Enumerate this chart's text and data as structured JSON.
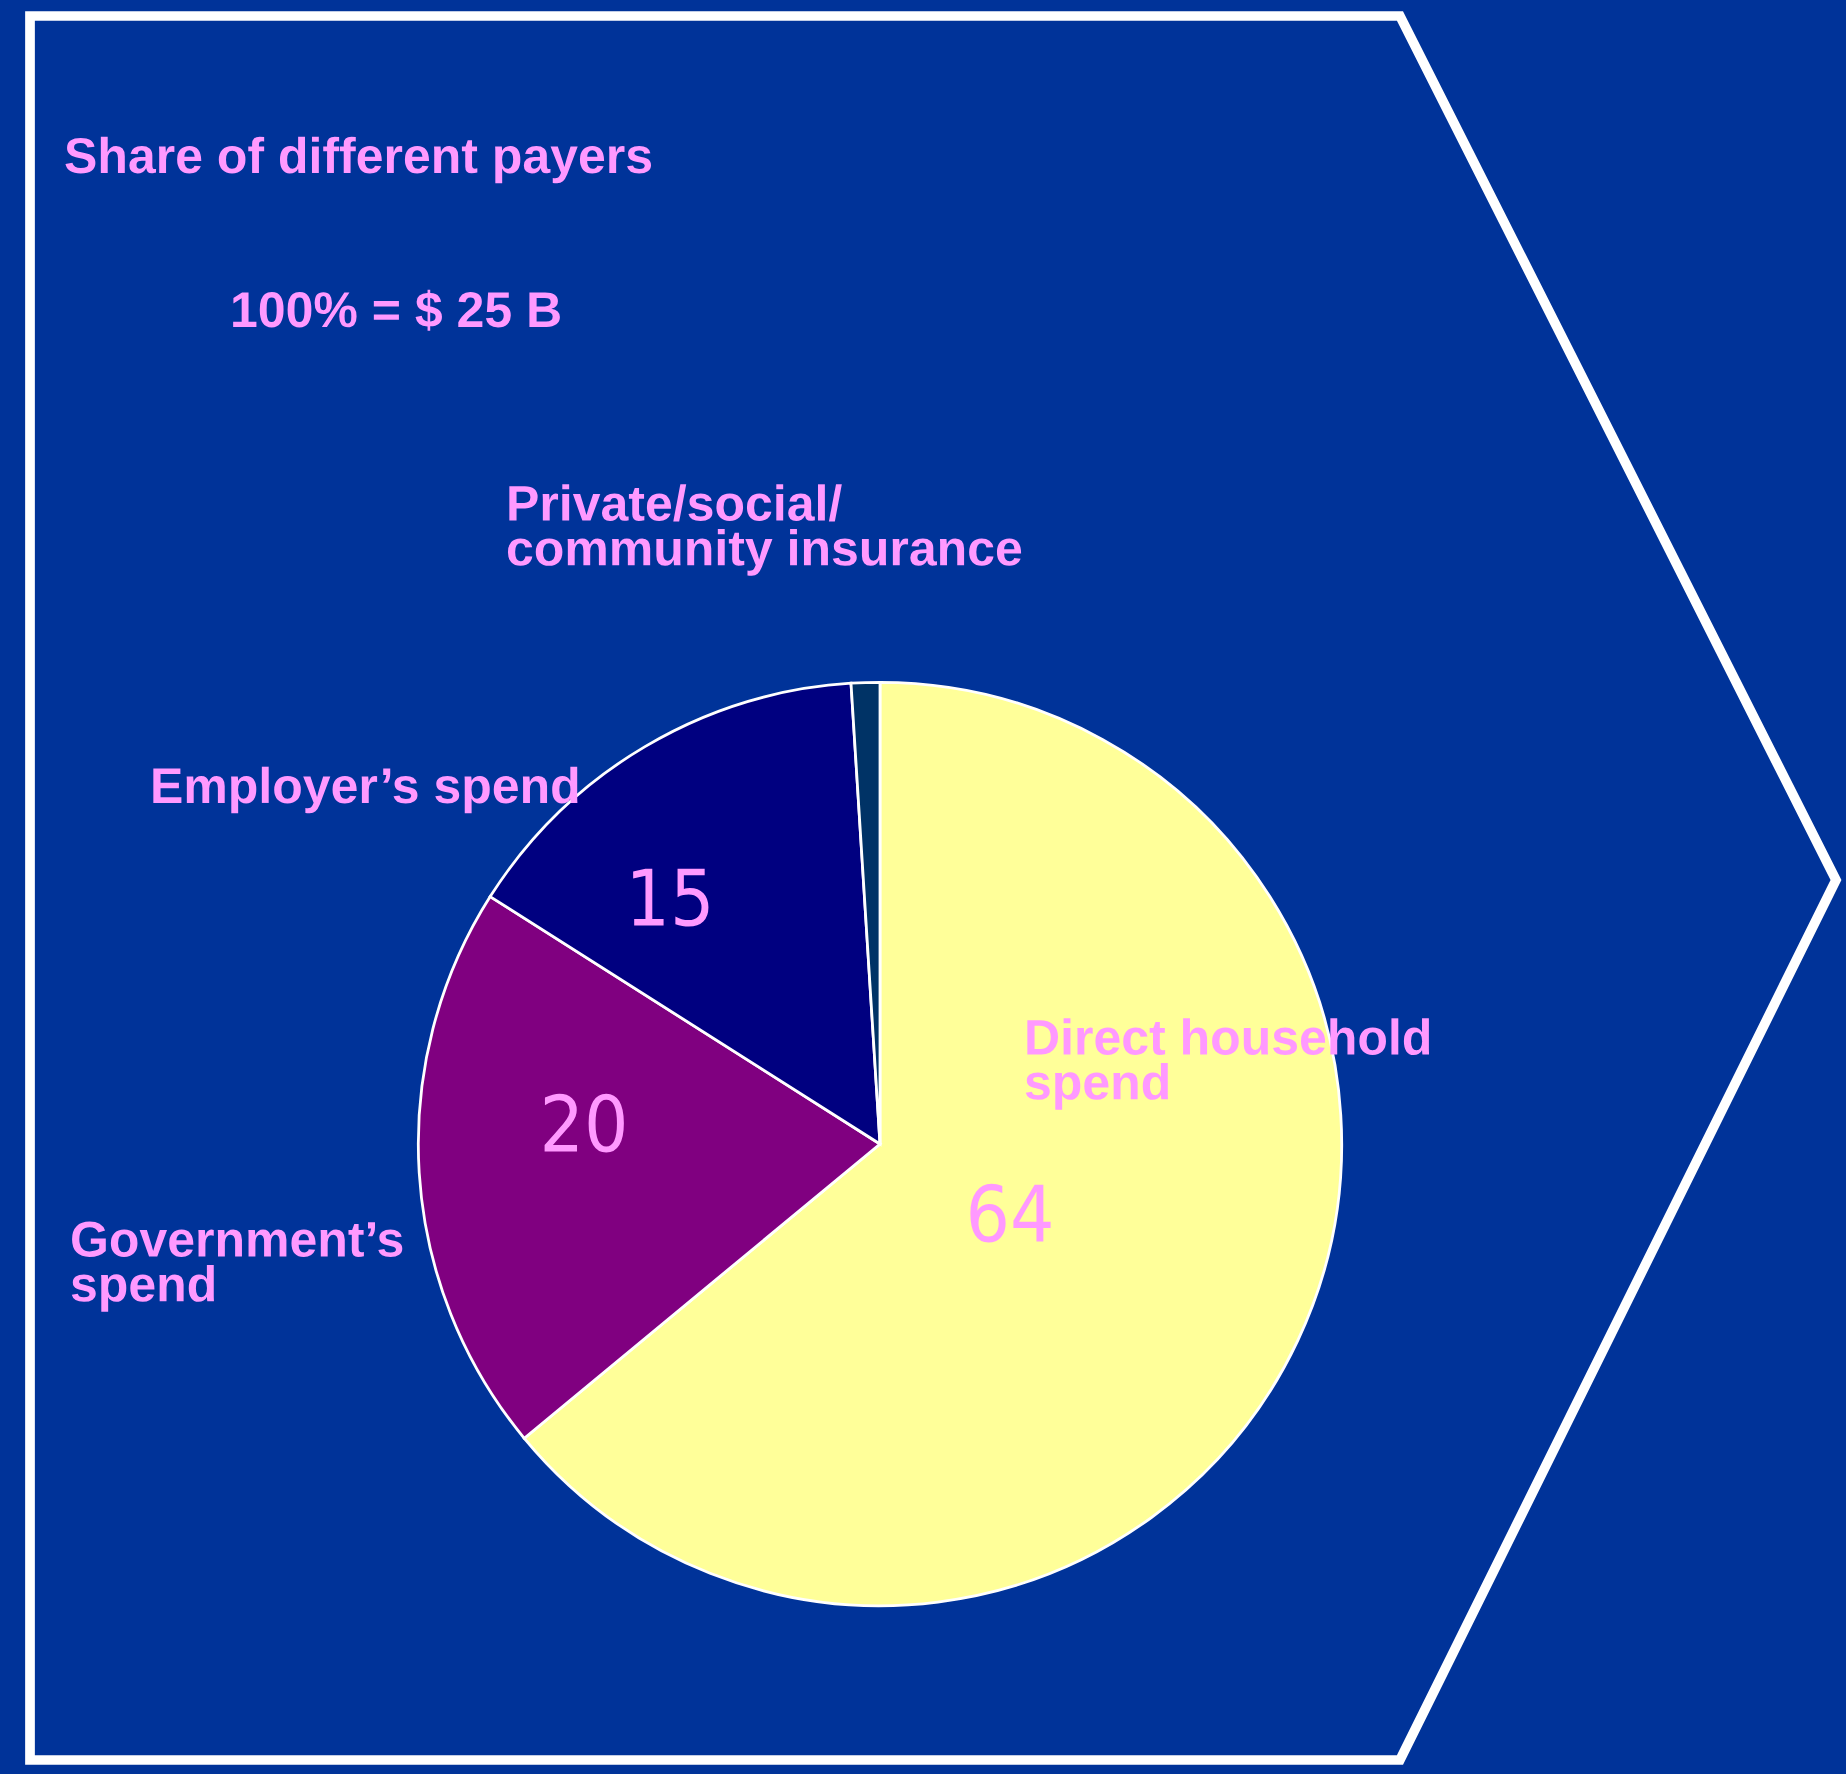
{
  "chart_data": {
    "type": "pie",
    "title": "Share of different payers",
    "subtitle": "100% = $ 25 B",
    "categories": [
      "Direct household\nspend",
      "Government’s\nspend",
      "Employer’s spend",
      "Private/social/\ncommunity insurance"
    ],
    "values": [
      64,
      20,
      15,
      1
    ],
    "value_labels": [
      "64",
      "20",
      "15",
      null
    ],
    "colors": [
      "#ffff99",
      "#800080",
      "#000080",
      "#003366"
    ]
  }
}
